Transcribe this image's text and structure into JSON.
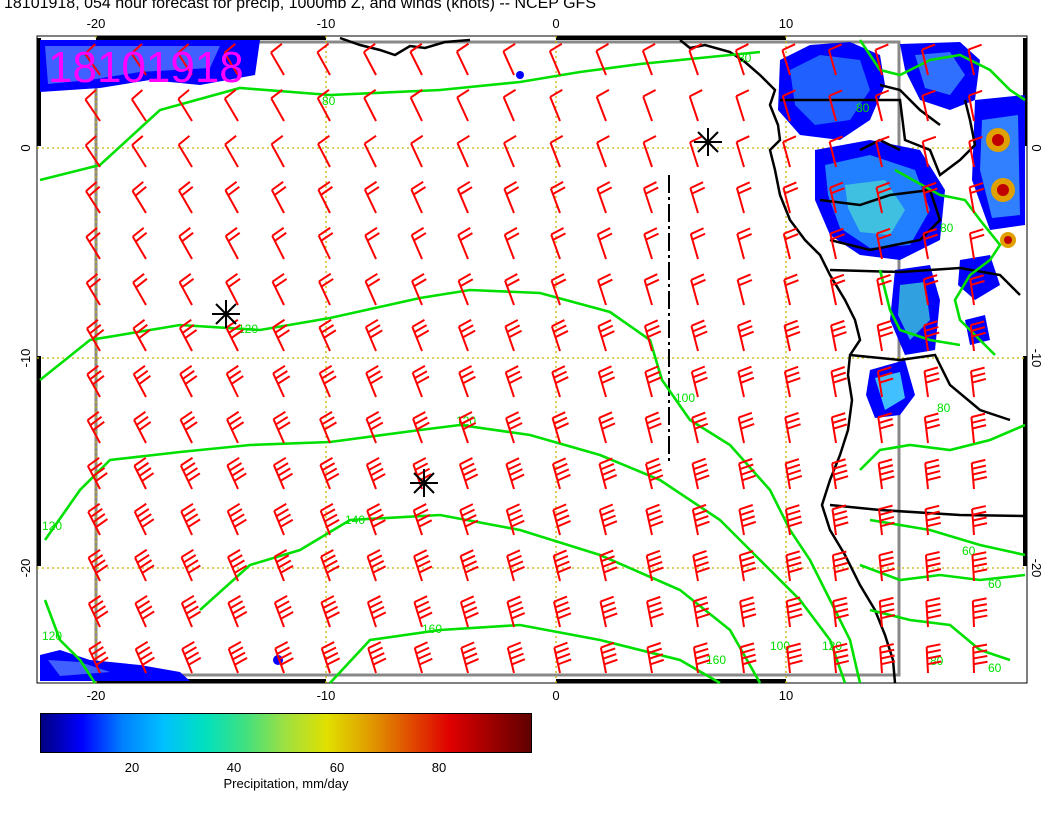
{
  "title": "18101918, 054 hour forecast for precip, 1000mb Z, and winds (knots) -- NCEP GFS",
  "stamp": "18101918",
  "axes": {
    "lon_ticks": [
      "-20",
      "-10",
      "0",
      "10"
    ],
    "lat_ticks": [
      "0",
      "-10",
      "-20"
    ]
  },
  "contours": [
    {
      "label": "80"
    },
    {
      "label": "100"
    },
    {
      "label": "120"
    },
    {
      "label": "140"
    },
    {
      "label": "160"
    }
  ],
  "land_contour_labels": [
    "80",
    "80",
    "80",
    "60",
    "60",
    "80",
    "60",
    "80",
    "100",
    "120"
  ],
  "colorbar": {
    "title": "Precipitation, mm/day",
    "ticks": [
      "20",
      "40",
      "60",
      "80"
    ],
    "colors": [
      "#000080",
      "#0000ff",
      "#0080ff",
      "#00c0ff",
      "#00e0c0",
      "#40e080",
      "#a0e040",
      "#e0e000",
      "#e0a000",
      "#e05000",
      "#e00000",
      "#a00000",
      "#600000"
    ]
  },
  "colors": {
    "wind_barb": "#ff0000",
    "height_contour": "#00e000",
    "coastline": "#000000",
    "grid": "#c8b400",
    "stamp": "#ff00ff"
  }
}
